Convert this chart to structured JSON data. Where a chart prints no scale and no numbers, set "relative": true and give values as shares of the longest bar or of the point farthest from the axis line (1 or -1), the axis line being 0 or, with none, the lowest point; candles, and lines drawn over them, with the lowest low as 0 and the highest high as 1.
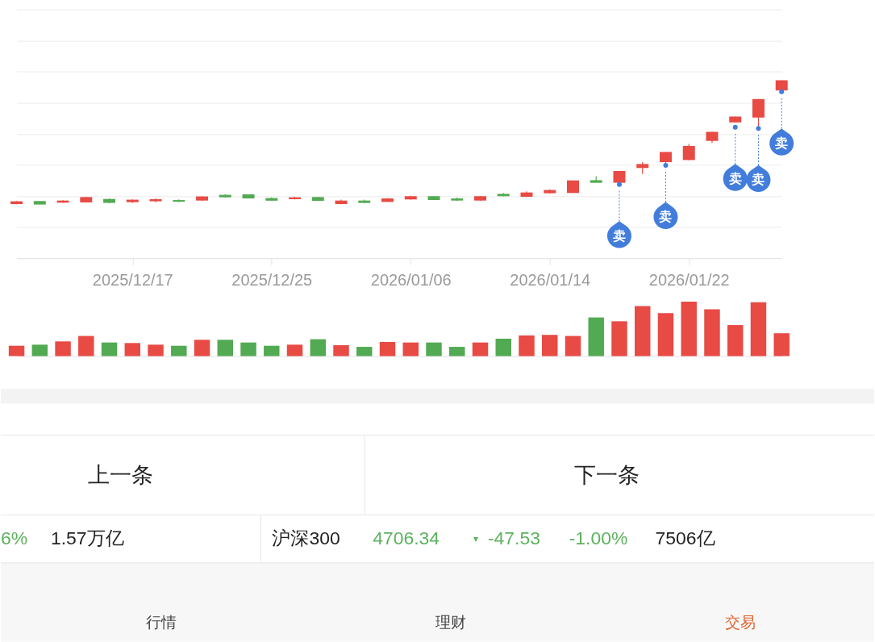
{
  "chart_data": [
    {
      "type": "candlestick",
      "relative": true,
      "grid": "y",
      "categories": [
        null,
        null,
        null,
        null,
        null,
        "2025/12/17",
        null,
        null,
        null,
        null,
        null,
        "2025/12/25",
        null,
        null,
        null,
        null,
        null,
        "2026/01/06",
        null,
        null,
        null,
        null,
        null,
        "2026/01/14",
        null,
        null,
        null,
        null,
        null,
        "2026/01/22",
        null,
        null,
        null,
        null
      ],
      "ohlc": [
        [
          0.004,
          0.028,
          0.002,
          0.026
        ],
        [
          0.028,
          0.028,
          0,
          0
        ],
        [
          0.015,
          0.034,
          0.013,
          0.032
        ],
        [
          0.017,
          0.06,
          0.017,
          0.06
        ],
        [
          0.045,
          0.049,
          0.01,
          0.013
        ],
        [
          0.019,
          0.041,
          0.013,
          0.039
        ],
        [
          0.026,
          0.049,
          0.019,
          0.043
        ],
        [
          0.036,
          0.041,
          0.019,
          0.023
        ],
        [
          0.032,
          0.067,
          0.03,
          0.065
        ],
        [
          0.078,
          0.084,
          0.056,
          0.058
        ],
        [
          0.082,
          0.082,
          0.049,
          0.049
        ],
        [
          0.052,
          0.058,
          0.028,
          0.031
        ],
        [
          0.043,
          0.062,
          0.041,
          0.058
        ],
        [
          0.06,
          0.062,
          0.028,
          0.03
        ],
        [
          0.004,
          0.039,
          0.002,
          0.032
        ],
        [
          0.032,
          0.039,
          0.01,
          0.013
        ],
        [
          0.021,
          0.052,
          0.021,
          0.049
        ],
        [
          0.041,
          0.071,
          0.039,
          0.067
        ],
        [
          0.067,
          0.067,
          0.036,
          0.036
        ],
        [
          0.049,
          0.056,
          0.03,
          0.032
        ],
        [
          0.032,
          0.069,
          0.03,
          0.067
        ],
        [
          0.086,
          0.093,
          0.065,
          0.067
        ],
        [
          0.062,
          0.106,
          0.06,
          0.097
        ],
        [
          0.091,
          0.123,
          0.088,
          0.117
        ],
        [
          0.093,
          0.194,
          0.093,
          0.194
        ],
        [
          0.196,
          0.227,
          0.175,
          0.175
        ],
        [
          0.175,
          0.27,
          0.175,
          0.27
        ],
        [
          0.294,
          0.341,
          0.246,
          0.326
        ],
        [
          0.341,
          0.423,
          0.332,
          0.423
        ],
        [
          0.358,
          0.488,
          0.358,
          0.471
        ],
        [
          0.512,
          0.585,
          0.496,
          0.585
        ],
        [
          0.661,
          0.708,
          0.661,
          0.708
        ],
        [
          0.7,
          0.849,
          0.618,
          0.849
        ],
        [
          0.918,
          1,
          0.918,
          1
        ]
      ],
      "colors": [
        "#e84a44",
        "#52aa52",
        "#e84a44",
        "#e84a44",
        "#52aa52",
        "#e84a44",
        "#e84a44",
        "#52aa52",
        "#e84a44",
        "#52aa52",
        "#52aa52",
        "#52aa52",
        "#e84a44",
        "#52aa52",
        "#e84a44",
        "#52aa52",
        "#e84a44",
        "#e84a44",
        "#52aa52",
        "#52aa52",
        "#e84a44",
        "#52aa52",
        "#e84a44",
        "#e84a44",
        "#e84a44",
        "#52aa52",
        "#e84a44",
        "#e84a44",
        "#e84a44",
        "#e84a44",
        "#e84a44",
        "#e84a44",
        "#e84a44",
        "#e84a44"
      ],
      "series": [
        {
          "type": "scatter",
          "name": "卖",
          "color": "#427ddc",
          "values": [
            null,
            null,
            null,
            null,
            null,
            null,
            null,
            null,
            null,
            null,
            null,
            null,
            null,
            null,
            null,
            null,
            null,
            null,
            null,
            null,
            null,
            null,
            null,
            null,
            null,
            null,
            0.162,
            null,
            0.315,
            null,
            null,
            0.622,
            0.613,
            0.907
          ]
        }
      ]
    },
    {
      "type": "bar",
      "relative": true,
      "tick_labels": false,
      "categories": [
        null,
        null,
        null,
        null,
        null,
        "2025/12/17",
        null,
        null,
        null,
        null,
        null,
        "2025/12/25",
        null,
        null,
        null,
        null,
        null,
        "2026/01/06",
        null,
        null,
        null,
        null,
        null,
        "2026/01/14",
        null,
        null,
        null,
        null,
        null,
        "2026/01/22",
        null,
        null,
        null,
        null
      ],
      "values": [
        0.19,
        0.21,
        0.27,
        0.37,
        0.25,
        0.24,
        0.21,
        0.19,
        0.3,
        0.3,
        0.25,
        0.19,
        0.21,
        0.31,
        0.2,
        0.17,
        0.26,
        0.25,
        0.25,
        0.17,
        0.25,
        0.32,
        0.38,
        0.39,
        0.37,
        0.71,
        0.64,
        0.92,
        0.79,
        1,
        0.86,
        0.57,
        0.99,
        0.42
      ],
      "colors": [
        "#e84a44",
        "#52aa52",
        "#e84a44",
        "#e84a44",
        "#52aa52",
        "#e84a44",
        "#e84a44",
        "#52aa52",
        "#e84a44",
        "#52aa52",
        "#52aa52",
        "#52aa52",
        "#e84a44",
        "#52aa52",
        "#e84a44",
        "#52aa52",
        "#e84a44",
        "#e84a44",
        "#52aa52",
        "#52aa52",
        "#e84a44",
        "#52aa52",
        "#e84a44",
        "#e84a44",
        "#e84a44",
        "#52aa52",
        "#e84a44",
        "#e84a44",
        "#e84a44",
        "#e84a44",
        "#e84a44",
        "#e84a44",
        "#e84a44",
        "#e84a44"
      ]
    },
    {
      "type": "other",
      "annotations": [
        "上一条",
        "下一条",
        "6%",
        "1.57万亿",
        "沪深300",
        "4706.34",
        "▾",
        "-47.53",
        "-1.00%",
        "7506亿",
        "行情",
        "理财",
        "交易"
      ],
      "colors": [
        "#222222",
        "#222222",
        "#5cb25f",
        "#222222",
        "#222222",
        "#5cb25f",
        "#5cb25f",
        "#5cb25f",
        "#5cb25f",
        "#222222",
        "#444444",
        "#444444",
        "#e0622a"
      ]
    }
  ]
}
